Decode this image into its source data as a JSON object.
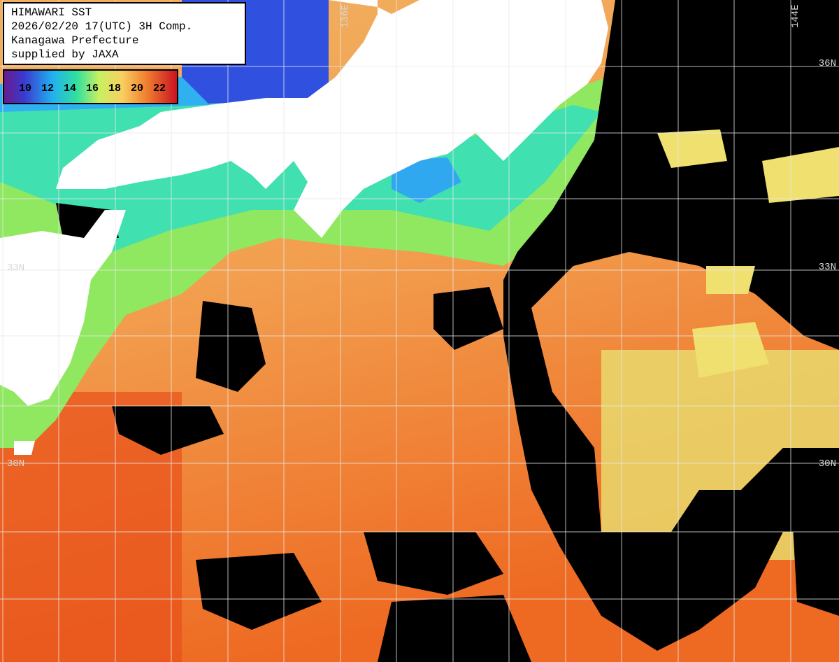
{
  "header": {
    "lines": [
      "HIMAWARI SST",
      "2026/02/20 17(UTC) 3H Comp.",
      "Kanagawa Prefecture",
      "supplied by JAXA"
    ]
  },
  "colorbar": {
    "labels": [
      "10",
      "12",
      "14",
      "16",
      "18",
      "20",
      "22"
    ]
  },
  "grid_labels": {
    "top": [
      "136E",
      "144E"
    ],
    "right": [
      "36N",
      "33N",
      "30N"
    ],
    "left": [
      "33N",
      "30N"
    ]
  }
}
